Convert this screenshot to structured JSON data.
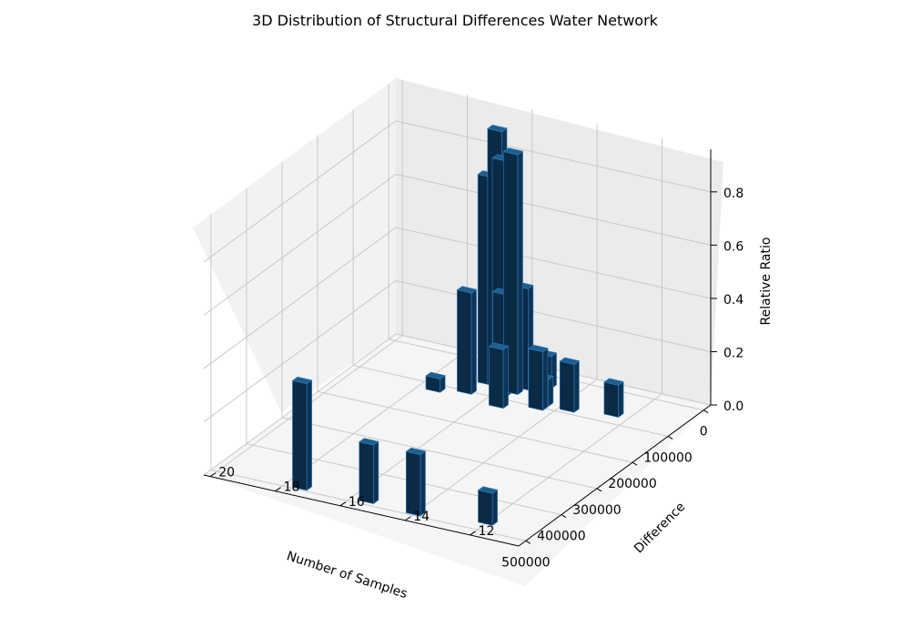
{
  "chart_data": {
    "type": "bar3d",
    "title": "3D Distribution of Structural Differences Water Network",
    "xlabel": "Number of Samples",
    "ylabel": "Difference",
    "zlabel": "Relative Ratio",
    "xlim": [
      -20000,
      520000
    ],
    "ylim": [
      10.5,
      20.2
    ],
    "zlim": [
      0,
      0.96
    ],
    "x_ticks": [
      0,
      100000,
      200000,
      300000,
      400000,
      500000
    ],
    "x_tick_labels": [
      "0",
      "100000",
      "200000",
      "300000",
      "400000",
      "500000"
    ],
    "y_ticks": [
      12,
      14,
      16,
      18,
      20
    ],
    "y_tick_labels": [
      "12",
      "14",
      "16",
      "18",
      "20"
    ],
    "z_ticks": [
      0,
      0.2,
      0.4,
      0.6,
      0.8
    ],
    "z_tick_labels": [
      "0.0",
      "0.2",
      "0.4",
      "0.6",
      "0.8"
    ],
    "grid": true,
    "bar_color": "#0d3455",
    "edge_color": "#2f7bbf",
    "bars": [
      {
        "x": 60000,
        "y": 16.5,
        "z": 0.78
      },
      {
        "x": 60000,
        "y": 16.2,
        "z": 0.96
      },
      {
        "x": 65000,
        "y": 16.0,
        "z": 0.86
      },
      {
        "x": 70000,
        "y": 15.6,
        "z": 0.9
      },
      {
        "x": 50000,
        "y": 15.5,
        "z": 0.38
      },
      {
        "x": 82000,
        "y": 15.8,
        "z": 0.38
      },
      {
        "x": 100000,
        "y": 16.7,
        "z": 0.38
      },
      {
        "x": 115000,
        "y": 17.5,
        "z": 0.05
      },
      {
        "x": 20000,
        "y": 16.0,
        "z": 0.08
      },
      {
        "x": 30000,
        "y": 15.0,
        "z": 0.12
      },
      {
        "x": 85000,
        "y": 14.5,
        "z": 0.1
      },
      {
        "x": 85000,
        "y": 13.7,
        "z": 0.18
      },
      {
        "x": 100000,
        "y": 14.5,
        "z": 0.22
      },
      {
        "x": 120000,
        "y": 15.5,
        "z": 0.22
      },
      {
        "x": 70000,
        "y": 12.5,
        "z": 0.12
      },
      {
        "x": 470000,
        "y": 12.0,
        "z": 0.12
      },
      {
        "x": 490000,
        "y": 14.0,
        "z": 0.23
      },
      {
        "x": 485000,
        "y": 15.5,
        "z": 0.22
      },
      {
        "x": 490000,
        "y": 17.5,
        "z": 0.4
      }
    ]
  }
}
